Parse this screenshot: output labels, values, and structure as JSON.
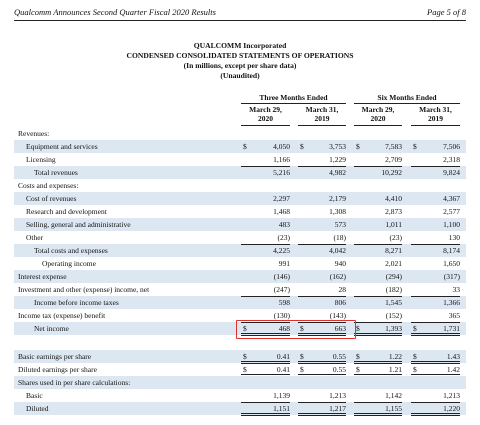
{
  "header": {
    "title": "Qualcomm Announces Second Quarter Fiscal 2020 Results",
    "page": "Page 5 of 8"
  },
  "statement": {
    "company": "QUALCOMM Incorporated",
    "title": "CONDENSED CONSOLIDATED STATEMENTS OF OPERATIONS",
    "units": "(In millions, except per share data)",
    "note": "(Unaudited)"
  },
  "table": {
    "column_groups": [
      "Three Months Ended",
      "Six Months Ended"
    ],
    "columns": [
      [
        "March 29,",
        "2020"
      ],
      [
        "March 31,",
        "2019"
      ],
      [
        "March 29,",
        "2020"
      ],
      [
        "March 31,",
        "2019"
      ]
    ],
    "rows": [
      {
        "label": "Revenues:"
      },
      {
        "label": "Equipment and services",
        "currency": [
          "$",
          "$",
          "$",
          "$"
        ],
        "values": [
          "4,050",
          "3,753",
          "7,583",
          "7,506"
        ]
      },
      {
        "label": "Licensing",
        "values": [
          "1,166",
          "1,229",
          "2,709",
          "2,318"
        ]
      },
      {
        "label": "Total revenues",
        "values": [
          "5,216",
          "4,982",
          "10,292",
          "9,824"
        ]
      },
      {
        "label": "Costs and expenses:"
      },
      {
        "label": "Cost of revenues",
        "values": [
          "2,297",
          "2,179",
          "4,410",
          "4,367"
        ]
      },
      {
        "label": "Research and development",
        "values": [
          "1,468",
          "1,308",
          "2,873",
          "2,577"
        ]
      },
      {
        "label": "Selling, general and administrative",
        "values": [
          "483",
          "573",
          "1,011",
          "1,100"
        ]
      },
      {
        "label": "Other",
        "values": [
          "(23)",
          "(18)",
          "(23)",
          "130"
        ]
      },
      {
        "label": "Total costs and expenses",
        "values": [
          "4,225",
          "4,042",
          "8,271",
          "8,174"
        ]
      },
      {
        "label": "Operating income",
        "values": [
          "991",
          "940",
          "2,021",
          "1,650"
        ]
      },
      {
        "label": "Interest expense",
        "values": [
          "(146)",
          "(162)",
          "(294)",
          "(317)"
        ]
      },
      {
        "label": "Investment and other (expense) income, net",
        "values": [
          "(247)",
          "28",
          "(182)",
          "33"
        ]
      },
      {
        "label": "Income before income taxes",
        "values": [
          "598",
          "806",
          "1,545",
          "1,366"
        ]
      },
      {
        "label": "Income tax (expense) benefit",
        "values": [
          "(130)",
          "(143)",
          "(152)",
          "365"
        ]
      },
      {
        "label": "Net income",
        "currency": [
          "$",
          "$",
          "$",
          "$"
        ],
        "values": [
          "468",
          "663",
          "1,393",
          "1,731"
        ]
      },
      {
        "label": "Basic earnings per share",
        "currency": [
          "$",
          "$",
          "$",
          "$"
        ],
        "values": [
          "0.41",
          "0.55",
          "1.22",
          "1.43"
        ]
      },
      {
        "label": "Diluted earnings per share",
        "currency": [
          "$",
          "$",
          "$",
          "$"
        ],
        "values": [
          "0.41",
          "0.55",
          "1.21",
          "1.42"
        ]
      },
      {
        "label": "Shares used in per share calculations:"
      },
      {
        "label": "Basic",
        "values": [
          "1,139",
          "1,213",
          "1,142",
          "1,213"
        ]
      },
      {
        "label": "Diluted",
        "values": [
          "1,151",
          "1,217",
          "1,155",
          "1,220"
        ]
      }
    ]
  }
}
